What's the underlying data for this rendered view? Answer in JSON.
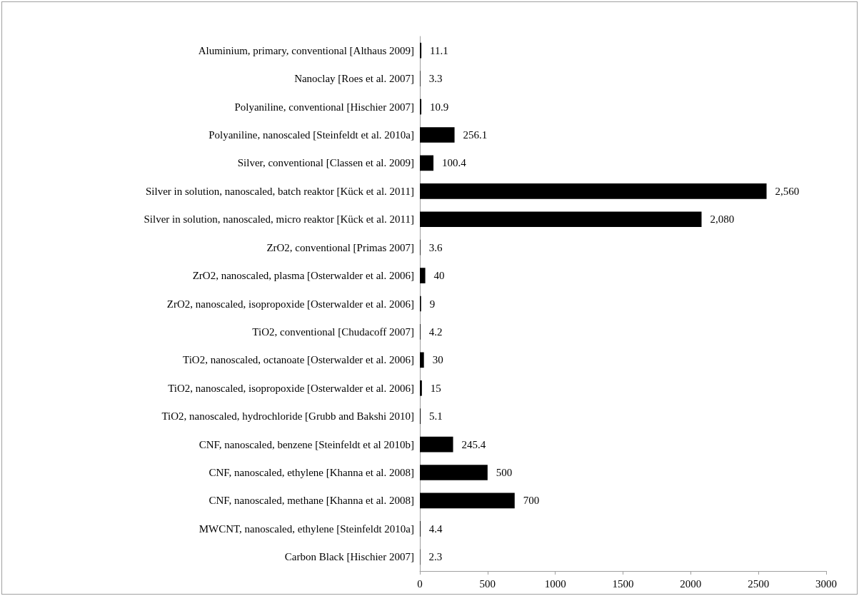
{
  "chart_data": {
    "type": "bar",
    "orientation": "horizontal",
    "categories": [
      "Aluminium, primary, conventional [Althaus 2009]",
      "Nanoclay [Roes et al. 2007]",
      "Polyaniline, conventional [Hischier 2007]",
      "Polyaniline, nanoscaled [Steinfeldt et al. 2010a]",
      "Silver, conventional [Classen et al. 2009]",
      "Silver in solution, nanoscaled, batch reaktor [Kück et al. 2011]",
      "Silver in solution, nanoscaled, micro reaktor [Kück et al. 2011]",
      "ZrO2, conventional [Primas 2007]",
      "ZrO2, nanoscaled, plasma [Osterwalder et al. 2006]",
      "ZrO2, nanoscaled, isopropoxide [Osterwalder et al. 2006]",
      "TiO2, conventional [Chudacoff 2007]",
      "TiO2, nanoscaled, octanoate [Osterwalder et al. 2006]",
      "TiO2, nanoscaled, isopropoxide [Osterwalder et al. 2006]",
      "TiO2, nanoscaled, hydrochloride [Grubb and Bakshi 2010]",
      "CNF, nanoscaled, benzene [Steinfeldt et al 2010b]",
      "CNF, nanoscaled, ethylene [Khanna et al. 2008]",
      "CNF, nanoscaled, methane [Khanna et al. 2008]",
      "MWCNT, nanoscaled, ethylene [Steinfeldt 2010a]",
      "Carbon Black [Hischier 2007]"
    ],
    "values": [
      11.1,
      3.3,
      10.9,
      256.1,
      100.4,
      2560,
      2080,
      3.6,
      40,
      9,
      4.2,
      30,
      15,
      5.1,
      245.4,
      500,
      700,
      4.4,
      2.3
    ],
    "value_labels": [
      "11.1",
      "3.3",
      "10.9",
      "256.1",
      "100.4",
      "2,560",
      "2,080",
      "3.6",
      "40",
      "9",
      "4.2",
      "30",
      "15",
      "5.1",
      "245.4",
      "500",
      "700",
      "4.4",
      "2.3"
    ],
    "color": "#000000",
    "xlim": [
      0,
      3000
    ],
    "xticks": [
      0,
      500,
      1000,
      1500,
      2000,
      2500,
      3000
    ],
    "grid": false
  }
}
